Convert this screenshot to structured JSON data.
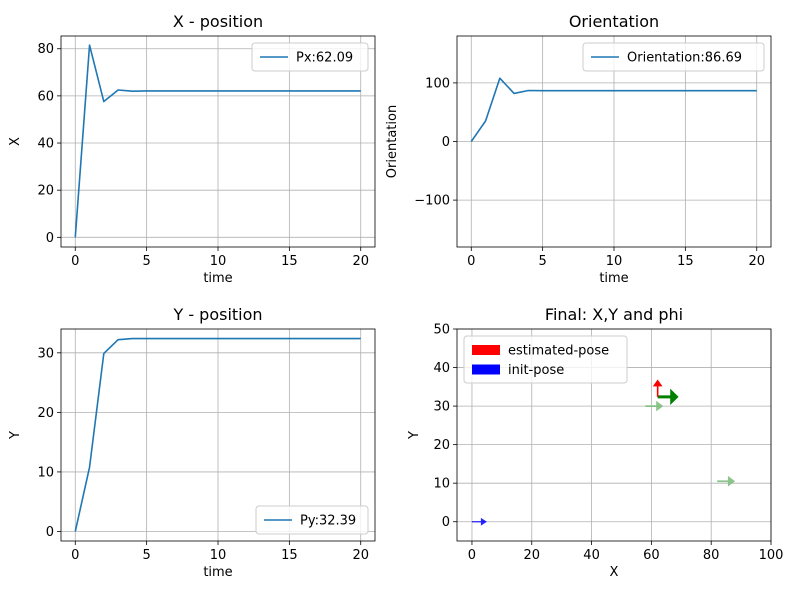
{
  "chart_data": [
    {
      "type": "line",
      "title": "X - position",
      "xlabel": "time",
      "ylabel": "X",
      "xlim": [
        -1,
        21
      ],
      "ylim": [
        -4.1,
        85.4
      ],
      "xticks": [
        0,
        5,
        10,
        15,
        20
      ],
      "yticks": [
        0,
        20,
        40,
        60,
        80
      ],
      "grid": true,
      "legend_loc": "upper right",
      "series": [
        {
          "name": "Px:62.09",
          "color": "#1f77b4",
          "x": [
            0,
            1,
            2,
            3,
            4,
            5,
            6,
            7,
            8,
            9,
            10,
            11,
            12,
            13,
            14,
            15,
            16,
            17,
            18,
            19,
            20
          ],
          "y": [
            0,
            81.5,
            57.6,
            62.5,
            62.0,
            62.1,
            62.09,
            62.09,
            62.09,
            62.09,
            62.09,
            62.09,
            62.09,
            62.09,
            62.09,
            62.09,
            62.09,
            62.09,
            62.09,
            62.09,
            62.09
          ]
        }
      ]
    },
    {
      "type": "line",
      "title": "Orientation",
      "xlabel": "time",
      "ylabel": "Orientation",
      "xlim": [
        -1,
        21
      ],
      "ylim": [
        -180,
        180
      ],
      "xticks": [
        0,
        5,
        10,
        15,
        20
      ],
      "yticks": [
        -100,
        0,
        100
      ],
      "grid": true,
      "legend_loc": "upper right",
      "series": [
        {
          "name": "Orientation:86.69",
          "color": "#1f77b4",
          "x": [
            0,
            1,
            2,
            3,
            4,
            5,
            6,
            7,
            8,
            9,
            10,
            11,
            12,
            13,
            14,
            15,
            16,
            17,
            18,
            19,
            20
          ],
          "y": [
            0,
            35,
            108,
            82,
            87,
            86.7,
            86.69,
            86.69,
            86.69,
            86.69,
            86.69,
            86.69,
            86.69,
            86.69,
            86.69,
            86.69,
            86.69,
            86.69,
            86.69,
            86.69,
            86.69
          ]
        }
      ]
    },
    {
      "type": "line",
      "title": "Y - position",
      "xlabel": "time",
      "ylabel": "Y",
      "xlim": [
        -1,
        21
      ],
      "ylim": [
        -1.6,
        34.0
      ],
      "xticks": [
        0,
        5,
        10,
        15,
        20
      ],
      "yticks": [
        0,
        10,
        20,
        30
      ],
      "grid": true,
      "legend_loc": "lower right",
      "series": [
        {
          "name": "Py:32.39",
          "color": "#1f77b4",
          "x": [
            0,
            1,
            2,
            3,
            4,
            5,
            6,
            7,
            8,
            9,
            10,
            11,
            12,
            13,
            14,
            15,
            16,
            17,
            18,
            19,
            20
          ],
          "y": [
            0,
            10.8,
            29.9,
            32.2,
            32.4,
            32.39,
            32.39,
            32.39,
            32.39,
            32.39,
            32.39,
            32.39,
            32.39,
            32.39,
            32.39,
            32.39,
            32.39,
            32.39,
            32.39,
            32.39,
            32.39
          ]
        }
      ]
    },
    {
      "type": "quiver",
      "title": "Final: X,Y and phi",
      "xlabel": "X",
      "ylabel": "Y",
      "xlim": [
        -5,
        100
      ],
      "ylim": [
        -5,
        50
      ],
      "xticks": [
        0,
        20,
        40,
        60,
        80,
        100
      ],
      "yticks": [
        0,
        10,
        20,
        30,
        40,
        50
      ],
      "grid": true,
      "legend_loc": "upper left",
      "legend": [
        {
          "label": "estimated-pose",
          "color": "#ff0000"
        },
        {
          "label": "init-pose",
          "color": "#0000ff"
        }
      ],
      "arrows": [
        {
          "x": 0,
          "y": 0,
          "angle": 0,
          "length": 5,
          "color": "#0000ff",
          "opacity": 0.85,
          "width": 1.2
        },
        {
          "x": 58,
          "y": 30,
          "angle": 0,
          "length": 6,
          "color": "#7fbf7f",
          "opacity": 0.9,
          "width": 1.8
        },
        {
          "x": 82,
          "y": 10.5,
          "angle": 0,
          "length": 6,
          "color": "#7fbf7f",
          "opacity": 0.9,
          "width": 1.8
        },
        {
          "x": 62.1,
          "y": 32.4,
          "angle": 0,
          "length": 7,
          "color": "#008000",
          "opacity": 1,
          "width": 3
        },
        {
          "x": 62.1,
          "y": 32.4,
          "angle": 90,
          "length": 4.5,
          "color": "#ff0000",
          "opacity": 1,
          "width": 1.6
        }
      ]
    }
  ]
}
